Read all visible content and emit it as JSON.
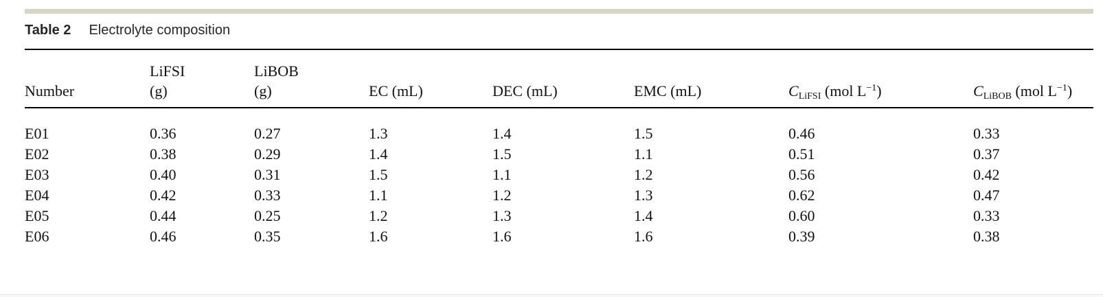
{
  "caption": {
    "label": "Table 2",
    "title": "Electrolyte composition"
  },
  "table": {
    "headers": {
      "number": {
        "line1": "",
        "line2": "Number"
      },
      "lifsi_g": {
        "line1": "LiFSI",
        "line2": "(g)"
      },
      "libob_g": {
        "line1": "LiBOB",
        "line2": "(g)"
      },
      "ec": {
        "line1": "",
        "line2": "EC (mL)"
      },
      "dec": {
        "line1": "",
        "line2": "DEC (mL)"
      },
      "emc": {
        "line1": "",
        "line2": "EMC (mL)"
      },
      "c_lifsi": {
        "symbol": "C",
        "subscript": "LiFSI",
        "unit_open": " (mol L",
        "superscript": "−1",
        "unit_close": ")"
      },
      "c_libob": {
        "symbol": "C",
        "subscript": "LiBOB",
        "unit_open": " (mol L",
        "superscript": "−1",
        "unit_close": ")"
      }
    },
    "rows": [
      {
        "number": "E01",
        "lifsi_g": "0.36",
        "libob_g": "0.27",
        "ec": "1.3",
        "dec": "1.4",
        "emc": "1.5",
        "c_lifsi": "0.46",
        "c_libob": "0.33"
      },
      {
        "number": "E02",
        "lifsi_g": "0.38",
        "libob_g": "0.29",
        "ec": "1.4",
        "dec": "1.5",
        "emc": "1.1",
        "c_lifsi": "0.51",
        "c_libob": "0.37"
      },
      {
        "number": "E03",
        "lifsi_g": "0.40",
        "libob_g": "0.31",
        "ec": "1.5",
        "dec": "1.1",
        "emc": "1.2",
        "c_lifsi": "0.56",
        "c_libob": "0.42"
      },
      {
        "number": "E04",
        "lifsi_g": "0.42",
        "libob_g": "0.33",
        "ec": "1.1",
        "dec": "1.2",
        "emc": "1.3",
        "c_lifsi": "0.62",
        "c_libob": "0.47"
      },
      {
        "number": "E05",
        "lifsi_g": "0.44",
        "libob_g": "0.25",
        "ec": "1.2",
        "dec": "1.3",
        "emc": "1.4",
        "c_lifsi": "0.60",
        "c_libob": "0.33"
      },
      {
        "number": "E06",
        "lifsi_g": "0.46",
        "libob_g": "0.35",
        "ec": "1.6",
        "dec": "1.6",
        "emc": "1.6",
        "c_lifsi": "0.39",
        "c_libob": "0.38"
      }
    ]
  },
  "colors": {
    "accent_bar": "#d9d4c3",
    "rule": "#000000",
    "text": "#111111",
    "caption_text": "#262626",
    "page_edge_line": "#e4e4e4",
    "page_below": "#f7f7f7"
  }
}
